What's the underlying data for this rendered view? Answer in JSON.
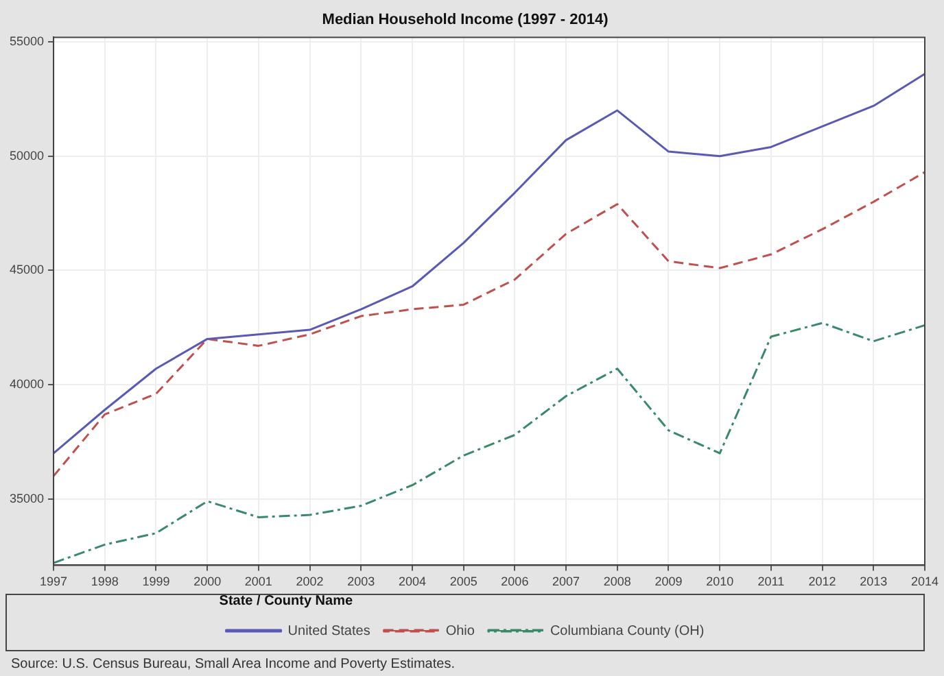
{
  "chart_data": {
    "type": "line",
    "title": "Median Household Income (1997 - 2014)",
    "categories": [
      "1997",
      "1998",
      "1999",
      "2000",
      "2001",
      "2002",
      "2003",
      "2004",
      "2005",
      "2006",
      "2007",
      "2008",
      "2009",
      "2010",
      "2011",
      "2012",
      "2013",
      "2014"
    ],
    "series": [
      {
        "name": "United States",
        "color": "#5a5ab4",
        "line_style": "solid",
        "values": [
          37000,
          38900,
          40700,
          42000,
          42200,
          42400,
          43300,
          44300,
          46200,
          48400,
          50700,
          52000,
          50200,
          50000,
          50400,
          51300,
          52200,
          53600
        ]
      },
      {
        "name": "Ohio",
        "color": "#c0504d",
        "line_style": "dashed",
        "values": [
          36000,
          38700,
          39600,
          42000,
          41700,
          42200,
          43000,
          43300,
          43500,
          44600,
          46600,
          47900,
          45400,
          45100,
          45700,
          46800,
          48000,
          49300
        ]
      },
      {
        "name": "Columbiana County (OH)",
        "color": "#3a8a6a",
        "line_style": "dashdot",
        "values": [
          32200,
          33000,
          33500,
          34900,
          34200,
          34300,
          34700,
          35600,
          36900,
          37800,
          39500,
          40700,
          38000,
          37000,
          42100,
          42700,
          41900,
          42600
        ]
      }
    ],
    "ylim": [
      32100,
      55200
    ],
    "yticks": [
      35000,
      40000,
      45000,
      50000,
      55000
    ],
    "grid": true,
    "legend": "bottom",
    "legend_title": "State / County Name",
    "marker": "none",
    "annotations": [
      "Source: U.S. Census Bureau, Small Area Income and Poverty Estimates."
    ]
  }
}
